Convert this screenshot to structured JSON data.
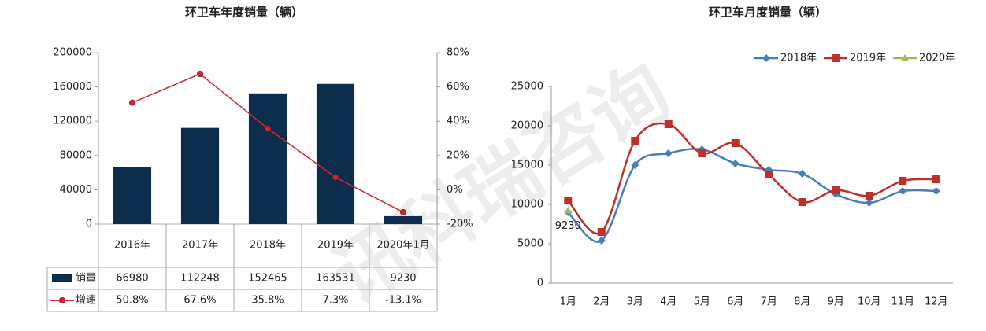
{
  "watermark": "讯科瑞咨询",
  "chart_data": [
    {
      "type": "bar",
      "title": "环卫车年度销量（辆）",
      "categories": [
        "2016年",
        "2017年",
        "2018年",
        "2019年",
        "2020年1月"
      ],
      "series": [
        {
          "name": "销量",
          "type": "bar",
          "color": "#0c2d4c",
          "values": [
            66980,
            112248,
            152465,
            163531,
            9230
          ]
        },
        {
          "name": "增速",
          "type": "line",
          "axis": "y2",
          "color": "#d22a2a",
          "values": [
            50.8,
            67.6,
            35.8,
            7.3,
            -13.1
          ],
          "value_labels": [
            "50.8%",
            "67.6%",
            "35.8%",
            "7.3%",
            "-13.1%"
          ]
        }
      ],
      "ylim": [
        0,
        200000
      ],
      "yticks": [
        0,
        40000,
        80000,
        120000,
        160000,
        200000
      ],
      "y2lim": [
        -20,
        80
      ],
      "y2ticks": [
        {
          "value": -20,
          "label": "-20%"
        },
        {
          "value": 0,
          "label": "0%"
        },
        {
          "value": 20,
          "label": "20%"
        },
        {
          "value": 40,
          "label": "40%"
        },
        {
          "value": 60,
          "label": "60%"
        },
        {
          "value": 80,
          "label": "80%"
        }
      ],
      "data_table": true
    },
    {
      "type": "line",
      "title": "环卫车月度销量（辆）",
      "smooth": true,
      "legend": "top-right",
      "categories": [
        "1月",
        "2月",
        "3月",
        "4月",
        "5月",
        "6月",
        "7月",
        "8月",
        "9月",
        "10月",
        "11月",
        "12月"
      ],
      "series": [
        {
          "name": "2018年",
          "color": "#4a7ebb",
          "marker": "diamond",
          "values": [
            9000,
            5400,
            15000,
            16500,
            17000,
            15200,
            14400,
            13900,
            11300,
            10200,
            11700,
            11700
          ]
        },
        {
          "name": "2019年",
          "color": "#c0302b",
          "marker": "square",
          "values": [
            10500,
            6500,
            18100,
            20200,
            16500,
            17800,
            13800,
            10300,
            11800,
            11100,
            13000,
            13200
          ]
        },
        {
          "name": "2020年",
          "color": "#9bbb59",
          "marker": "triangle",
          "show_labels": true,
          "values": [
            9230,
            null,
            null,
            null,
            null,
            null,
            null,
            null,
            null,
            null,
            null,
            null
          ]
        }
      ],
      "ylim": [
        0,
        25000
      ],
      "yticks": [
        0,
        5000,
        10000,
        15000,
        20000,
        25000
      ]
    }
  ]
}
